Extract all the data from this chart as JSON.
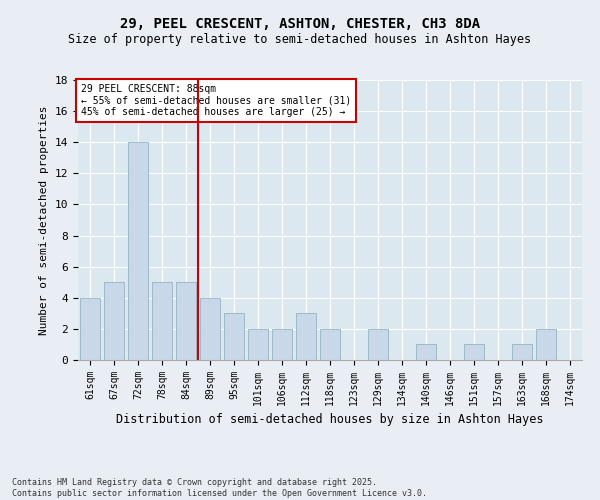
{
  "title": "29, PEEL CRESCENT, ASHTON, CHESTER, CH3 8DA",
  "subtitle": "Size of property relative to semi-detached houses in Ashton Hayes",
  "xlabel": "Distribution of semi-detached houses by size in Ashton Hayes",
  "ylabel": "Number of semi-detached properties",
  "categories": [
    "61sqm",
    "67sqm",
    "72sqm",
    "78sqm",
    "84sqm",
    "89sqm",
    "95sqm",
    "101sqm",
    "106sqm",
    "112sqm",
    "118sqm",
    "123sqm",
    "129sqm",
    "134sqm",
    "140sqm",
    "146sqm",
    "151sqm",
    "157sqm",
    "163sqm",
    "168sqm",
    "174sqm"
  ],
  "values": [
    4,
    5,
    14,
    5,
    5,
    4,
    3,
    2,
    2,
    3,
    2,
    0,
    2,
    0,
    1,
    0,
    1,
    0,
    1,
    2,
    0
  ],
  "bar_color": "#c8d8e8",
  "bar_edge_color": "#8aaabb",
  "vline_x_index": 4.5,
  "vline_color": "#cc0000",
  "annotation_title": "29 PEEL CRESCENT: 88sqm",
  "annotation_line1": "← 55% of semi-detached houses are smaller (31)",
  "annotation_line2": "45% of semi-detached houses are larger (25) →",
  "annotation_box_color": "#cc0000",
  "ylim": [
    0,
    18
  ],
  "yticks": [
    0,
    2,
    4,
    6,
    8,
    10,
    12,
    14,
    16,
    18
  ],
  "background_color": "#dce8f0",
  "grid_color": "#ffffff",
  "fig_background": "#e8eef4",
  "footnote": "Contains HM Land Registry data © Crown copyright and database right 2025.\nContains public sector information licensed under the Open Government Licence v3.0.",
  "title_fontsize": 10,
  "subtitle_fontsize": 8.5,
  "axis_label_fontsize": 8,
  "tick_fontsize": 7,
  "annotation_fontsize": 7,
  "footnote_fontsize": 6
}
